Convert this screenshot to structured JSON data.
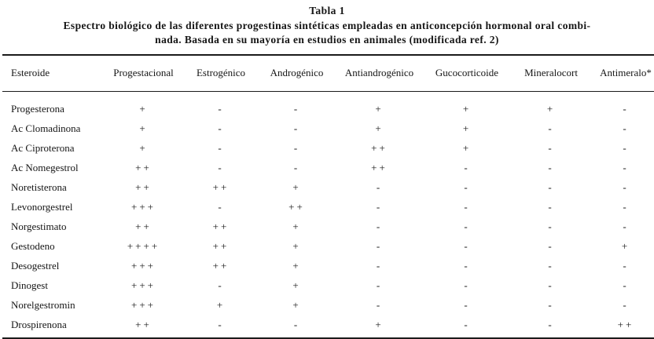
{
  "table": {
    "title": "Tabla 1",
    "subtitle_line1": "Espectro biológico de las diferentes progestinas sintéticas empleadas en anticoncepción hormonal oral combi-",
    "subtitle_line2": "nada. Basada en su mayoría en estudios en animales (modificada ref. 2)",
    "columns": [
      "Esteroide",
      "Progestacional",
      "Estrogénico",
      "Androgénico",
      "Antiandrogénico",
      "Gucocorticoide",
      "Mineralocort",
      "Antimeralo*"
    ],
    "rows": [
      {
        "name": "Progesterona",
        "values": [
          "+",
          "-",
          "-",
          "+",
          "+",
          "+",
          "-"
        ]
      },
      {
        "name": "Ac Clomadinona",
        "values": [
          "+",
          "-",
          "-",
          "+",
          "+",
          "-",
          "-"
        ]
      },
      {
        "name": "Ac Ciproterona",
        "values": [
          "+",
          "-",
          "-",
          "++",
          "+",
          "-",
          "-"
        ]
      },
      {
        "name": "Ac Nomegestrol",
        "values": [
          "++",
          "-",
          "-",
          "++",
          "-",
          "-",
          "-"
        ]
      },
      {
        "name": "Noretisterona",
        "values": [
          "++",
          "++",
          "+",
          "-",
          "-",
          "-",
          "-"
        ]
      },
      {
        "name": "Levonorgestrel",
        "values": [
          "+++",
          "-",
          "++",
          "-",
          "-",
          "-",
          "-"
        ]
      },
      {
        "name": "Norgestimato",
        "values": [
          "++",
          "++",
          "+",
          "-",
          "-",
          "-",
          "-"
        ]
      },
      {
        "name": "Gestodeno",
        "values": [
          "++++",
          "++",
          "+",
          "-",
          "-",
          "-",
          "+"
        ]
      },
      {
        "name": "Desogestrel",
        "values": [
          "+++",
          "++",
          "+",
          "-",
          "-",
          "-",
          "-"
        ]
      },
      {
        "name": "Dinogest",
        "values": [
          "+++",
          "-",
          "+",
          "-",
          "-",
          "-",
          "-"
        ]
      },
      {
        "name": "Norelgestromin",
        "values": [
          "+++",
          "+",
          "+",
          "-",
          "-",
          "-",
          "-"
        ]
      },
      {
        "name": "Drospirenona",
        "values": [
          "++",
          "-",
          "-",
          "+",
          "-",
          "-",
          "++"
        ]
      }
    ]
  }
}
